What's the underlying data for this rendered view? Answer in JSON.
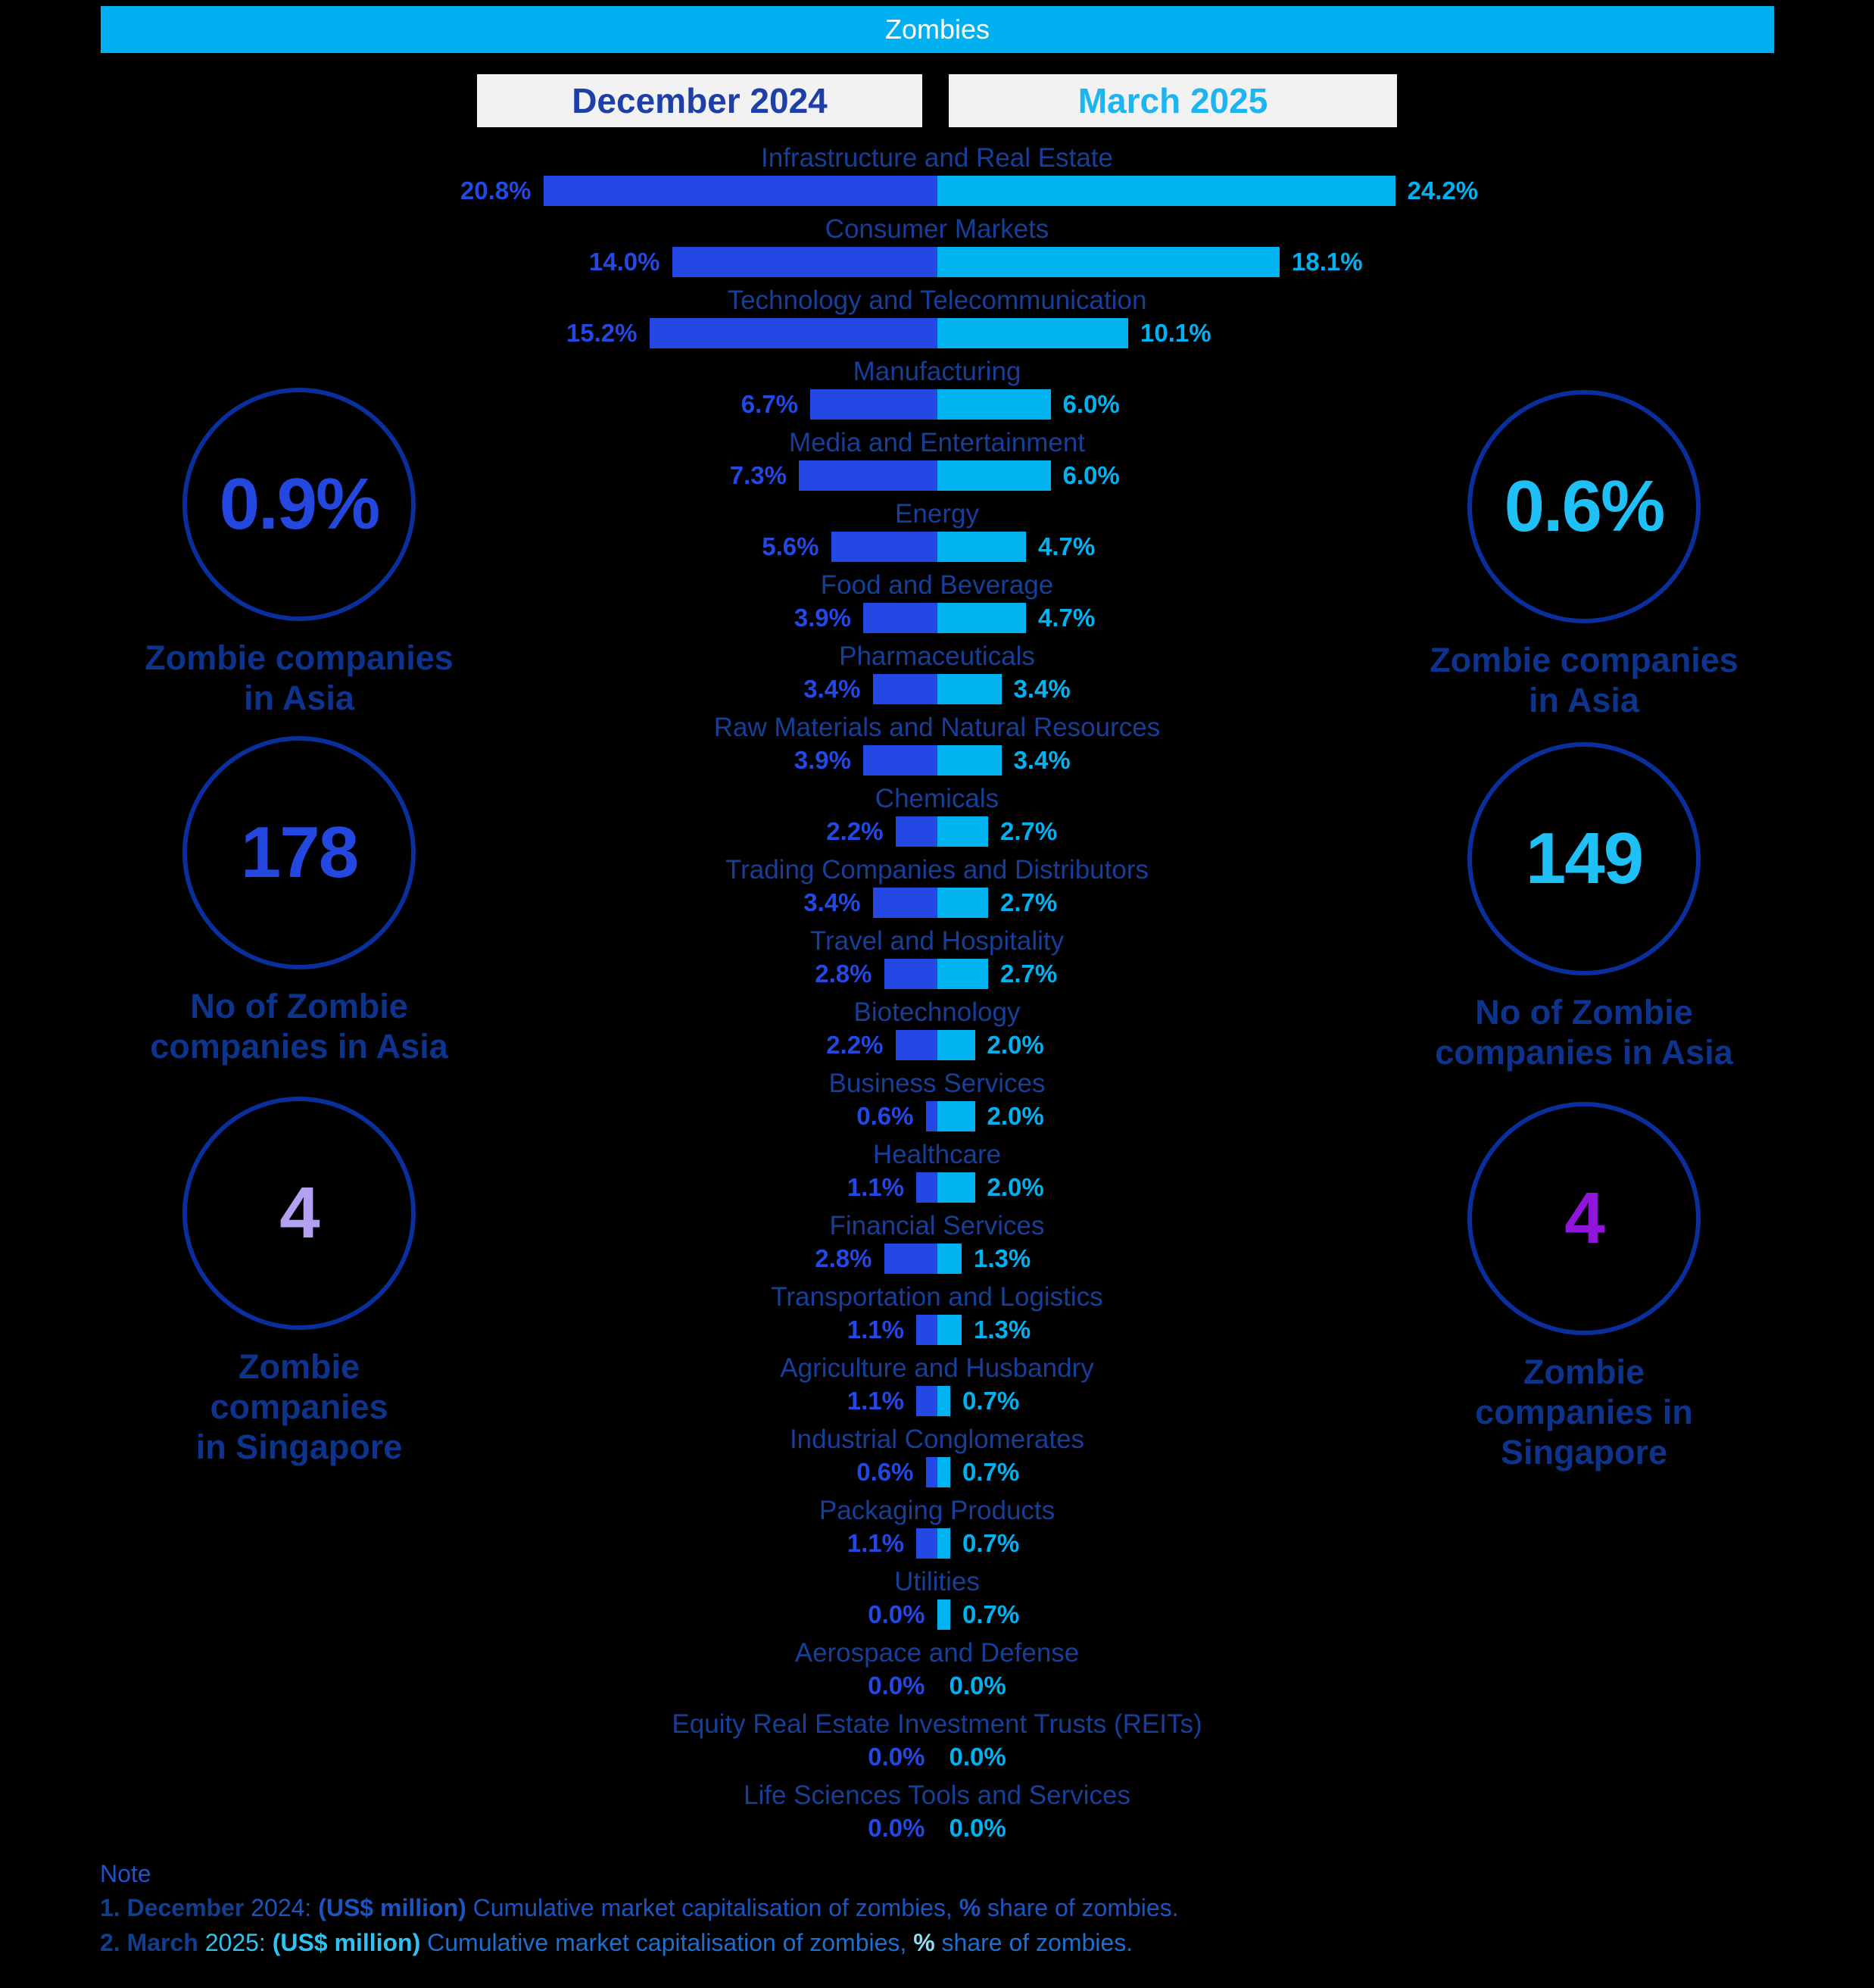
{
  "title": "Zombies",
  "legend": {
    "december": "December 2024",
    "march": "March 2025"
  },
  "colors": {
    "title_bar": "#00B0F0",
    "december_bar": "#2348E4",
    "march_bar": "#00B2F0",
    "category_label": "#173F9A",
    "caption_navy": "#0E338C",
    "circle_outline": "#0A2F9C"
  },
  "chart_data": {
    "type": "bar",
    "variant": "diverging-tornado",
    "title": "Zombies",
    "unit": "% share of zombies",
    "legend_position": "top",
    "axis_range_percent": [
      0,
      24.2
    ],
    "categories": [
      "Infrastructure and Real Estate",
      "Consumer Markets",
      "Technology and Telecommunication",
      "Manufacturing",
      "Media and Entertainment",
      "Energy",
      "Food and Beverage",
      "Pharmaceuticals",
      "Raw Materials and Natural Resources",
      "Chemicals",
      "Trading Companies and Distributors",
      "Travel and Hospitality",
      "Biotechnology",
      "Business Services",
      "Healthcare",
      "Financial Services",
      "Transportation and Logistics",
      "Agriculture and Husbandry",
      "Industrial Conglomerates",
      "Packaging Products",
      "Utilities",
      "Aerospace and Defense",
      "Equity Real Estate Investment Trusts (REITs)",
      "Life Sciences Tools and Services"
    ],
    "series": [
      {
        "name": "December 2024",
        "color": "#2348E4",
        "values": [
          20.8,
          14.0,
          15.2,
          6.7,
          7.3,
          5.6,
          3.9,
          3.4,
          3.9,
          2.2,
          3.4,
          2.8,
          2.2,
          0.6,
          1.1,
          2.8,
          1.1,
          1.1,
          0.6,
          1.1,
          0.0,
          0.0,
          0.0,
          0.0
        ]
      },
      {
        "name": "March 2025",
        "color": "#00B2F0",
        "values": [
          24.2,
          18.1,
          10.1,
          6.0,
          6.0,
          4.7,
          4.7,
          3.4,
          3.4,
          2.7,
          2.7,
          2.7,
          2.0,
          2.0,
          2.0,
          1.3,
          1.3,
          0.7,
          0.7,
          0.7,
          0.7,
          0.0,
          0.0,
          0.0
        ]
      }
    ]
  },
  "stats_left": [
    {
      "value": "0.9%",
      "value_color": "#2447E0",
      "caption_lines": [
        "Zombie companies",
        "in Asia"
      ]
    },
    {
      "value": "178",
      "value_color": "#2447E0",
      "caption_lines": [
        "No of Zombie",
        "companies in Asia"
      ]
    },
    {
      "value": "4",
      "value_color": "#B3A0F0",
      "caption_lines": [
        "Zombie",
        "companies",
        "in Singapore"
      ]
    }
  ],
  "stats_right": [
    {
      "value": "0.6%",
      "value_color": "#1FC0F5",
      "caption_lines": [
        "Zombie companies",
        "in Asia"
      ]
    },
    {
      "value": "149",
      "value_color": "#1FC0F5",
      "caption_lines": [
        "No of Zombie",
        "companies in Asia"
      ]
    },
    {
      "value": "4",
      "value_color": "#9015DB",
      "caption_lines": [
        "Zombie",
        "companies  in",
        "Singapore"
      ]
    }
  ],
  "note": {
    "title": "Note",
    "lines": [
      [
        {
          "t": "1. December ",
          "b": 1,
          "c": "#123E8F"
        },
        {
          "t": "2024: ",
          "b": 0,
          "c": "#1C55C2"
        },
        {
          "t": "(US$ million) ",
          "b": 1,
          "c": "#1C55C2"
        },
        {
          "t": "Cumulative market capitalisation of zombies, ",
          "b": 0,
          "c": "#1C55C2"
        },
        {
          "t": "%",
          "b": 1,
          "c": "#1C55C2"
        },
        {
          "t": " share of zombies.",
          "b": 0,
          "c": "#1C55C2"
        }
      ],
      [
        {
          "t": "2. March ",
          "b": 1,
          "c": "#123E8F"
        },
        {
          "t": "2025: ",
          "b": 0,
          "c": "#2FC3F2"
        },
        {
          "t": "(US$ million) ",
          "b": 1,
          "c": "#2FC3F2"
        },
        {
          "t": "Cumulative market capitalisation of zombies, ",
          "b": 0,
          "c": "#1E6FD0"
        },
        {
          "t": "%",
          "b": 1,
          "c": "#8FDCF8"
        },
        {
          "t": " share of zombies.",
          "b": 0,
          "c": "#1E6FD0"
        }
      ]
    ]
  }
}
